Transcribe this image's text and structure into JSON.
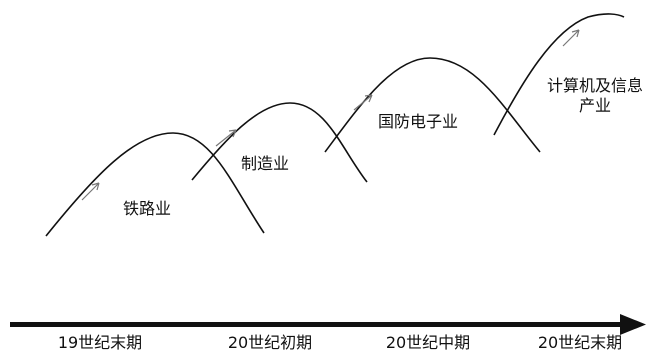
{
  "industries": [
    {
      "label": "铁路业"
    },
    {
      "label": "制造业"
    },
    {
      "label": "国防电子业"
    },
    {
      "label_line1": "计算机及信息",
      "label_line2": "产业"
    }
  ],
  "timeline": {
    "eras": [
      "19世纪末期",
      "20世纪初期",
      "20世纪中期",
      "20世纪末期"
    ]
  }
}
